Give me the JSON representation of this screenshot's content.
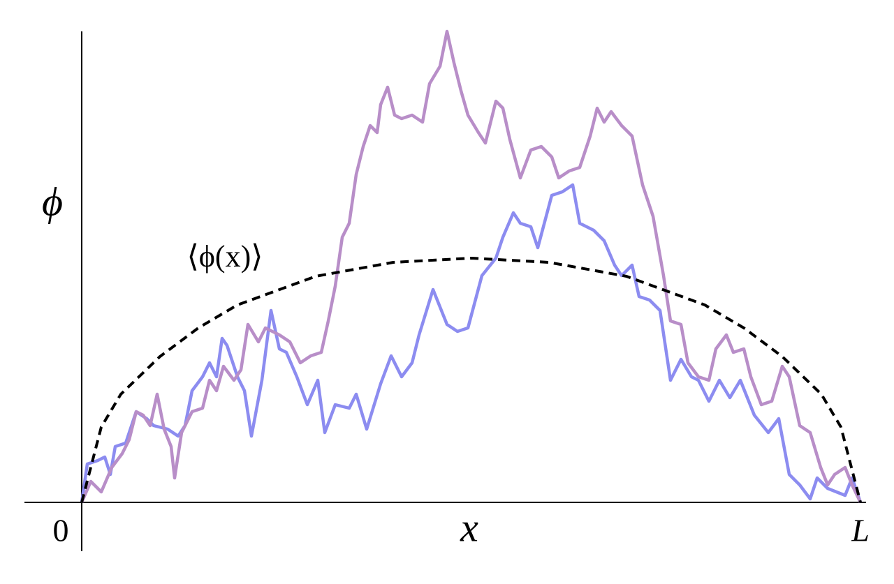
{
  "chart_data": {
    "type": "line",
    "x_label": "x",
    "y_label": "ϕ",
    "annotation": "⟨ϕ(x)⟩",
    "xlim": [
      -82,
      1123
    ],
    "ylim": [
      -70,
      675
    ],
    "xticks": [
      0,
      {
        "value": 1115,
        "label": "L"
      }
    ],
    "series": [
      {
        "color": "#8c8cf0",
        "x": [
          0,
          8,
          23,
          33,
          41,
          48,
          63,
          78,
          93,
          103,
          123,
          138,
          148,
          158,
          173,
          183,
          193,
          201,
          208,
          223,
          233,
          243,
          258,
          271,
          283,
          293,
          308,
          323,
          338,
          348,
          363,
          383,
          393,
          408,
          428,
          443,
          458,
          473,
          483,
          503,
          523,
          538,
          553,
          573,
          593,
          603,
          618,
          628,
          643,
          653,
          673,
          688,
          703,
          713,
          733,
          748,
          763,
          773,
          788,
          798,
          813,
          828,
          843,
          858,
          873,
          883,
          898,
          913,
          928,
          943,
          963,
          983,
          998,
          1013,
          1028,
          1043,
          1053,
          1068,
          1093,
          1103,
          1115
        ],
        "values": [
          0,
          55,
          60,
          65,
          40,
          80,
          85,
          130,
          120,
          110,
          105,
          95,
          110,
          160,
          180,
          200,
          180,
          235,
          225,
          180,
          160,
          95,
          175,
          275,
          220,
          215,
          180,
          140,
          175,
          100,
          140,
          135,
          155,
          105,
          170,
          210,
          180,
          200,
          240,
          305,
          255,
          245,
          250,
          325,
          350,
          380,
          415,
          400,
          395,
          365,
          440,
          445,
          455,
          400,
          390,
          375,
          340,
          325,
          340,
          295,
          290,
          275,
          175,
          205,
          180,
          175,
          145,
          175,
          150,
          175,
          125,
          100,
          120,
          40,
          25,
          5,
          35,
          20,
          10,
          35,
          0
        ]
      },
      {
        "color": "#b88ec8",
        "x": [
          0,
          13,
          28,
          43,
          58,
          68,
          78,
          88,
          98,
          108,
          118,
          128,
          133,
          143,
          158,
          173,
          183,
          193,
          203,
          218,
          228,
          238,
          253,
          263,
          283,
          298,
          313,
          328,
          343,
          353,
          363,
          373,
          383,
          393,
          403,
          413,
          423,
          428,
          438,
          448,
          458,
          473,
          488,
          498,
          513,
          523,
          533,
          543,
          553,
          568,
          578,
          593,
          603,
          613,
          628,
          643,
          658,
          673,
          683,
          698,
          713,
          728,
          738,
          748,
          758,
          773,
          788,
          803,
          818,
          833,
          843,
          858,
          868,
          883,
          898,
          908,
          923,
          933,
          948,
          958,
          973,
          988,
          1003,
          1013,
          1028,
          1043,
          1058,
          1068,
          1078,
          1093,
          1103,
          1115
        ],
        "values": [
          0,
          30,
          15,
          50,
          70,
          90,
          130,
          125,
          110,
          155,
          105,
          80,
          35,
          100,
          130,
          135,
          175,
          160,
          195,
          175,
          190,
          255,
          230,
          250,
          240,
          230,
          200,
          210,
          215,
          260,
          310,
          380,
          400,
          470,
          510,
          540,
          530,
          570,
          595,
          555,
          550,
          555,
          545,
          600,
          625,
          675,
          630,
          590,
          555,
          530,
          515,
          575,
          565,
          520,
          465,
          505,
          510,
          495,
          465,
          475,
          480,
          525,
          565,
          545,
          560,
          540,
          525,
          455,
          410,
          325,
          260,
          255,
          200,
          180,
          175,
          220,
          240,
          215,
          220,
          180,
          140,
          145,
          195,
          180,
          110,
          100,
          50,
          25,
          40,
          50,
          25,
          0
        ]
      },
      {
        "color": "#000000",
        "dashed": true,
        "x": [
          0,
          28,
          56,
          112,
          167,
          223,
          335,
          446,
          558,
          669,
          780,
          892,
          948,
          1003,
          1059,
          1087,
          1115
        ],
        "values": [
          0,
          108,
          155,
          209,
          250,
          283,
          324,
          344,
          350,
          344,
          324,
          283,
          250,
          209,
          155,
          108,
          0
        ]
      }
    ]
  }
}
